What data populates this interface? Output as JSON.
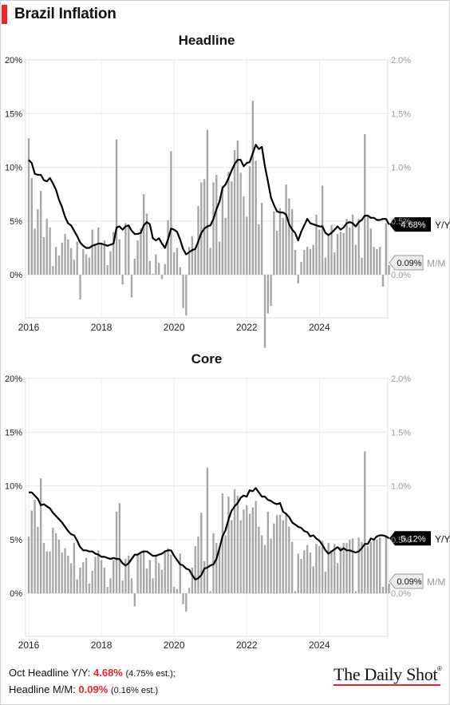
{
  "title": "Brazil Inflation",
  "footer": {
    "line1_label": "Oct Headline Y/Y: ",
    "line1_value": "4.68%",
    "line1_est": "(4.75% est.);",
    "line2_label": "Headline M/M: ",
    "line2_value": "0.09%",
    "line2_est": "(0.16% est.)"
  },
  "brand": "The Daily Shot",
  "colors": {
    "accent": "#e8262d",
    "line": "#000000",
    "bars": "#a6a6a6",
    "grid": "#e6e6e6"
  },
  "chart_data": [
    {
      "type": "line+bar",
      "title": "Headline",
      "x_ticks": [
        "2016",
        "2018",
        "2020",
        "2022",
        "2024"
      ],
      "x_range": [
        "2016-01",
        "2025-10"
      ],
      "y_left": {
        "range": [
          -4,
          20
        ],
        "ticks": [
          "0%",
          "5%",
          "10%",
          "15%",
          "20%"
        ]
      },
      "y_right": {
        "range": [
          -0.4,
          2.0
        ],
        "ticks": [
          "0.0%",
          "0.5%",
          "1.0%",
          "1.5%",
          "2.0%"
        ]
      },
      "end_labels": {
        "yoy": "4.68%",
        "yoy_name": "Y/Y",
        "mom": "0.09%",
        "mom_name": "M/M"
      },
      "series": [
        {
          "name": "Y/Y",
          "axis": "left",
          "start": "2016-01",
          "values": [
            10.7,
            10.4,
            9.4,
            9.3,
            9.3,
            8.8,
            8.7,
            9.0,
            8.5,
            7.9,
            7.0,
            6.3,
            5.4,
            4.8,
            4.6,
            4.1,
            3.6,
            3.0,
            2.7,
            2.5,
            2.5,
            2.7,
            2.8,
            2.9,
            2.9,
            2.8,
            2.7,
            2.8,
            2.9,
            4.4,
            4.5,
            4.2,
            4.5,
            4.6,
            4.1,
            3.8,
            3.8,
            3.9,
            4.6,
            4.9,
            4.7,
            3.4,
            3.2,
            3.4,
            2.9,
            2.5,
            3.3,
            4.3,
            4.2,
            4.0,
            3.3,
            2.4,
            1.9,
            2.1,
            2.3,
            2.4,
            3.1,
            3.9,
            4.3,
            4.5,
            4.6,
            5.2,
            6.1,
            6.8,
            8.1,
            8.4,
            9.0,
            9.7,
            10.3,
            10.7,
            10.7,
            10.1,
            10.4,
            10.5,
            11.3,
            12.1,
            11.7,
            11.9,
            10.1,
            8.7,
            7.2,
            6.5,
            5.9,
            5.8,
            5.8,
            5.6,
            4.7,
            4.2,
            3.9,
            3.2,
            4.0,
            4.6,
            5.2,
            4.8,
            4.7,
            4.6,
            4.5,
            4.5,
            3.9,
            3.7,
            3.9,
            4.2,
            4.5,
            4.2,
            4.4,
            4.8,
            4.9,
            4.8,
            4.5,
            4.9,
            5.1,
            5.5,
            5.5,
            5.3,
            5.3,
            5.1,
            5.1,
            5.2,
            5.2,
            4.68
          ]
        },
        {
          "name": "M/M",
          "axis": "right",
          "start": "2016-01",
          "values": [
            1.27,
            0.9,
            0.43,
            0.61,
            0.78,
            0.35,
            0.52,
            0.44,
            0.08,
            0.26,
            0.18,
            0.3,
            0.38,
            0.33,
            0.25,
            0.14,
            0.31,
            -0.23,
            0.24,
            0.19,
            0.16,
            0.42,
            0.28,
            0.44,
            0.29,
            0.32,
            0.09,
            0.22,
            0.4,
            1.26,
            0.33,
            -0.09,
            0.48,
            0.45,
            -0.21,
            0.15,
            0.32,
            0.43,
            0.75,
            0.57,
            0.13,
            0.01,
            0.19,
            0.11,
            -0.04,
            0.1,
            0.51,
            1.15,
            0.21,
            0.25,
            0.07,
            -0.31,
            -0.38,
            0.26,
            0.36,
            0.24,
            0.64,
            0.86,
            0.89,
            1.35,
            0.25,
            0.86,
            0.93,
            0.31,
            0.83,
            0.53,
            0.96,
            0.87,
            1.16,
            1.25,
            0.95,
            0.73,
            0.54,
            1.01,
            1.62,
            1.06,
            0.47,
            0.67,
            -0.68,
            -0.36,
            -0.29,
            0.59,
            0.41,
            0.62,
            0.53,
            0.84,
            0.71,
            0.61,
            0.23,
            -0.08,
            0.12,
            0.23,
            0.26,
            0.24,
            0.28,
            0.56,
            0.42,
            0.83,
            0.16,
            0.38,
            0.46,
            0.21,
            0.38,
            0.4,
            0.39,
            0.52,
            0.44,
            0.56,
            0.28,
            0.52,
            0.16,
            1.31,
            0.56,
            0.43,
            0.26,
            0.24,
            0.26,
            -0.11,
            0.48,
            0.09
          ]
        }
      ]
    },
    {
      "type": "line+bar",
      "title": "Core",
      "x_ticks": [
        "2016",
        "2018",
        "2020",
        "2022",
        "2024"
      ],
      "x_range": [
        "2016-01",
        "2025-10"
      ],
      "y_left": {
        "range": [
          -4,
          20
        ],
        "ticks": [
          "0%",
          "5%",
          "10%",
          "15%",
          "20%"
        ]
      },
      "y_right": {
        "range": [
          -0.4,
          2.0
        ],
        "ticks": [
          "0.0%",
          "0.5%",
          "1.0%",
          "1.5%",
          "2.0%"
        ]
      },
      "end_labels": {
        "yoy": "5.12%",
        "yoy_name": "Y/Y",
        "mom": "0.09%",
        "mom_name": "M/M"
      },
      "series": [
        {
          "name": "Y/Y",
          "axis": "left",
          "start": "2016-01",
          "values": [
            9.4,
            9.4,
            9.1,
            8.8,
            8.2,
            8.3,
            8.1,
            7.9,
            7.5,
            7.2,
            6.9,
            6.6,
            6.2,
            5.8,
            5.5,
            5.4,
            4.9,
            4.3,
            4.0,
            4.0,
            3.9,
            3.9,
            3.7,
            3.6,
            3.4,
            3.4,
            3.3,
            3.2,
            3.3,
            3.2,
            3.2,
            2.8,
            2.6,
            2.8,
            3.2,
            3.6,
            3.6,
            3.8,
            3.9,
            3.9,
            3.7,
            3.5,
            3.5,
            3.6,
            3.7,
            3.9,
            4.0,
            4.0,
            3.5,
            3.1,
            2.7,
            2.6,
            2.3,
            2.2,
            1.7,
            1.3,
            1.4,
            1.7,
            2.3,
            2.4,
            2.6,
            2.7,
            3.2,
            4.2,
            5.3,
            5.9,
            6.9,
            7.7,
            8.1,
            8.4,
            8.9,
            9.1,
            9.0,
            9.6,
            9.5,
            9.8,
            9.4,
            9.0,
            9.0,
            8.7,
            8.6,
            8.4,
            8.3,
            8.4,
            7.6,
            7.4,
            7.1,
            6.6,
            6.4,
            6.2,
            6.1,
            5.8,
            5.7,
            5.3,
            5.4,
            5.1,
            4.9,
            4.5,
            4.0,
            3.7,
            3.9,
            4.1,
            4.3,
            4.0,
            4.2,
            4.0,
            4.0,
            3.9,
            3.8,
            3.9,
            4.2,
            4.6,
            4.6,
            5.1,
            5.0,
            5.3,
            5.4,
            5.4,
            5.3,
            5.12
          ]
        },
        {
          "name": "M/M",
          "axis": "right",
          "start": "2016-01",
          "values": [
            0.53,
            0.77,
            0.87,
            0.62,
            1.07,
            0.47,
            0.39,
            0.39,
            0.61,
            0.56,
            0.5,
            0.38,
            0.42,
            0.35,
            0.28,
            0.47,
            0.13,
            0.24,
            0.29,
            0.33,
            0.09,
            0.21,
            0.34,
            0.4,
            0.31,
            0.24,
            0.06,
            0.14,
            0.31,
            0.76,
            0.84,
            0.12,
            0.32,
            0.35,
            0.14,
            -0.12,
            0.36,
            0.37,
            0.4,
            0.23,
            0.31,
            0.14,
            0.36,
            0.28,
            0.22,
            0.38,
            0.42,
            0.36,
            0.06,
            0.04,
            0.37,
            -0.1,
            -0.17,
            0.05,
            0.24,
            0.44,
            0.53,
            0.75,
            0.3,
            1.17,
            0.02,
            0.56,
            0.47,
            0.42,
            0.93,
            0.54,
            0.9,
            0.68,
            0.97,
            0.91,
            0.68,
            0.78,
            0.82,
            0.74,
            0.8,
            0.86,
            0.62,
            0.54,
            0.45,
            0.76,
            0.51,
            0.65,
            0.73,
            0.73,
            0.68,
            0.75,
            0.62,
            0.48,
            0.02,
            0.37,
            0.32,
            0.4,
            0.45,
            0.38,
            0.25,
            0.46,
            0.44,
            0.49,
            0.2,
            0.47,
            0.4,
            0.46,
            0.28,
            0.43,
            0.47,
            0.47,
            0.5,
            0.51,
            0.02,
            0.52,
            0.48,
            1.32,
            0.44,
            0.48,
            0.5,
            0.5,
            0.52,
            0.06,
            0.54,
            0.09
          ]
        }
      ]
    }
  ]
}
